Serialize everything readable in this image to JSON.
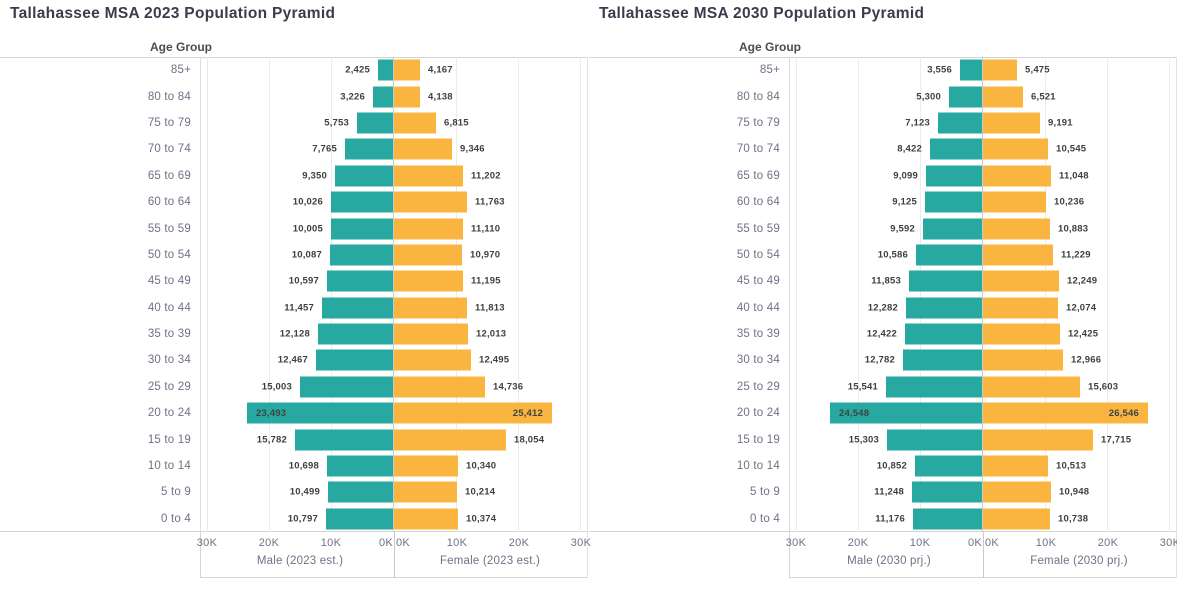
{
  "page": {
    "background": "#ffffff"
  },
  "colors": {
    "male_bar": "#27A8A1",
    "female_bar": "#FAB440",
    "title_text": "#3b3b4d",
    "axis_text": "#6d7385",
    "data_label_text": "#3f3f3f",
    "gridline": "#ececec",
    "pane_border": "#d6d6d6"
  },
  "chart_data": [
    {
      "type": "bar",
      "subtype": "population-pyramid",
      "title": "Tallahassee MSA 2023 Population Pyramid",
      "ylabel": "Age Group",
      "xlabel_left": "Male (2023 est.)",
      "xlabel_right": "Female (2023 est.)",
      "xlim": [
        0,
        30000
      ],
      "ticks_male": [
        "30K",
        "20K",
        "10K",
        "0K"
      ],
      "ticks_female": [
        "0K",
        "10K",
        "20K",
        "30K"
      ],
      "grid": true,
      "categories": [
        "85+",
        "80 to 84",
        "75 to 79",
        "70 to 74",
        "65 to 69",
        "60 to 64",
        "55 to 59",
        "50 to 54",
        "45 to 49",
        "40 to 44",
        "35 to 39",
        "30 to 34",
        "25 to 29",
        "20 to 24",
        "15 to 19",
        "10 to 14",
        "5 to 9",
        "0 to 4"
      ],
      "series": [
        {
          "name": "Male (2023 est.)",
          "color": "#27A8A1",
          "values": [
            2425,
            3226,
            5753,
            7765,
            9350,
            10026,
            10005,
            10087,
            10597,
            11457,
            12128,
            12467,
            15003,
            23493,
            15782,
            10698,
            10499,
            10797
          ],
          "labels": [
            "2,425",
            "3,226",
            "5,753",
            "7,765",
            "9,350",
            "10,026",
            "10,005",
            "10,087",
            "10,597",
            "11,457",
            "12,128",
            "12,467",
            "15,003",
            "23,493",
            "15,782",
            "10,698",
            "10,499",
            "10,797"
          ]
        },
        {
          "name": "Female (2023 est.)",
          "color": "#FAB440",
          "values": [
            4167,
            4138,
            6815,
            9346,
            11202,
            11763,
            11110,
            10970,
            11195,
            11813,
            12013,
            12495,
            14736,
            25412,
            18054,
            10340,
            10214,
            10374
          ],
          "labels": [
            "4,167",
            "4,138",
            "6,815",
            "9,346",
            "11,202",
            "11,763",
            "11,110",
            "10,970",
            "11,195",
            "11,813",
            "12,013",
            "12,495",
            "14,736",
            "25,412",
            "18,054",
            "10,340",
            "10,214",
            "10,374"
          ]
        }
      ]
    },
    {
      "type": "bar",
      "subtype": "population-pyramid",
      "title": "Tallahassee MSA 2030 Population Pyramid",
      "ylabel": "Age Group",
      "xlabel_left": "Male (2030 prj.)",
      "xlabel_right": "Female (2030 prj.)",
      "xlim": [
        0,
        30000
      ],
      "ticks_male": [
        "30K",
        "20K",
        "10K",
        "0K"
      ],
      "ticks_female": [
        "0K",
        "10K",
        "20K",
        "30K"
      ],
      "grid": true,
      "categories": [
        "85+",
        "80 to 84",
        "75 to 79",
        "70 to 74",
        "65 to 69",
        "60 to 64",
        "55 to 59",
        "50 to 54",
        "45 to 49",
        "40 to 44",
        "35 to 39",
        "30 to 34",
        "25 to 29",
        "20 to 24",
        "15 to 19",
        "10 to 14",
        "5 to 9",
        "0 to 4"
      ],
      "series": [
        {
          "name": "Male (2030 prj.)",
          "color": "#27A8A1",
          "values": [
            3556,
            5300,
            7123,
            8422,
            9099,
            9125,
            9592,
            10586,
            11853,
            12282,
            12422,
            12782,
            15541,
            24548,
            15303,
            10852,
            11248,
            11176
          ],
          "labels": [
            "3,556",
            "5,300",
            "7,123",
            "8,422",
            "9,099",
            "9,125",
            "9,592",
            "10,586",
            "11,853",
            "12,282",
            "12,422",
            "12,782",
            "15,541",
            "24,548",
            "15,303",
            "10,852",
            "11,248",
            "11,176"
          ]
        },
        {
          "name": "Female (2030 prj.)",
          "color": "#FAB440",
          "values": [
            5475,
            6521,
            9191,
            10545,
            11048,
            10236,
            10883,
            11229,
            12249,
            12074,
            12425,
            12966,
            15603,
            26546,
            17715,
            10513,
            10948,
            10738
          ],
          "labels": [
            "5,475",
            "6,521",
            "9,191",
            "10,545",
            "11,048",
            "10,236",
            "10,883",
            "11,229",
            "12,249",
            "12,074",
            "12,425",
            "12,966",
            "15,603",
            "26,546",
            "17,715",
            "10,513",
            "10,948",
            "10,738"
          ]
        }
      ]
    }
  ]
}
